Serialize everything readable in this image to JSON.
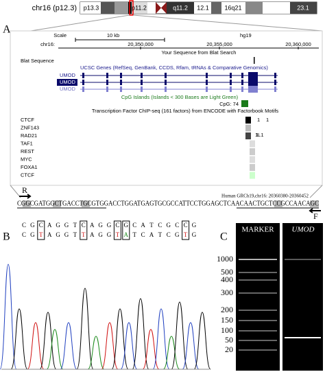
{
  "ideogram": {
    "chromosome": "chr16 (p12.3)",
    "bands": [
      "p13.3",
      "p11.2",
      "q11.2",
      "12.1",
      "16q21",
      "23.1"
    ]
  },
  "panel_a": {
    "label": "A",
    "scale_label": "Scale",
    "scale_value": "10 kb",
    "assembly": "hg19",
    "chrom_label": "chr16:",
    "positions": [
      "20,350,000",
      "20,355,000",
      "20,360,000"
    ],
    "blat_title": "Your Sequence from Blat Search",
    "blat_track": "Blat Sequence",
    "genes_title": "UCSC Genes (RefSeq, GenBank, CCDS, Rfam, tRNAs & Comparative Genomics)",
    "genes": [
      "UMOD",
      "UMOD",
      "UMOD"
    ],
    "cpg_title": "CpG Islands (Islands < 300 Bases are Light Green)",
    "cpg_item": "CpG: 74",
    "tf_title": "Transcription Factor ChIP-seq (161 factors) from ENCODE with Factorbook Motifs",
    "factors": [
      "CTCF",
      "ZNF143",
      "RAD21",
      "TAF1",
      "REST",
      "MYC",
      "FOXA1",
      "CTCF"
    ],
    "tf_scores": [
      "1",
      "1",
      "1",
      "1L1"
    ]
  },
  "sequence": {
    "primer_r": "R",
    "primer_f": "F",
    "coords": "Human GRCh19,chr16: 20360380-20360452",
    "bases": "CGGCGATGGCTGACCTGCGTGGACCTGGATGAGTGCGCCATTCCTGGAGCTCAACAACTGCTCCGCCAACAGC"
  },
  "panel_b": {
    "label": "B",
    "top_bases": [
      "C",
      "G",
      "C",
      "A",
      "G",
      "G",
      "T",
      "C",
      "A",
      "G",
      "G",
      "C",
      "G",
      "C",
      "A",
      "T",
      "C",
      "G",
      "C",
      "C",
      "G"
    ],
    "bottom_bases": [
      "C",
      "G",
      "T",
      "A",
      "G",
      "G",
      "T",
      "T",
      "A",
      "G",
      "G",
      "T",
      "A",
      "T",
      "C",
      "A",
      "T",
      "C",
      "G",
      "T",
      "G"
    ]
  },
  "panel_c": {
    "label": "C",
    "lanes": [
      "MARKER",
      "UMOD"
    ],
    "ladder": [
      "1000",
      "500",
      "400",
      "300",
      "200",
      "150",
      "100",
      "50",
      "20"
    ]
  }
}
